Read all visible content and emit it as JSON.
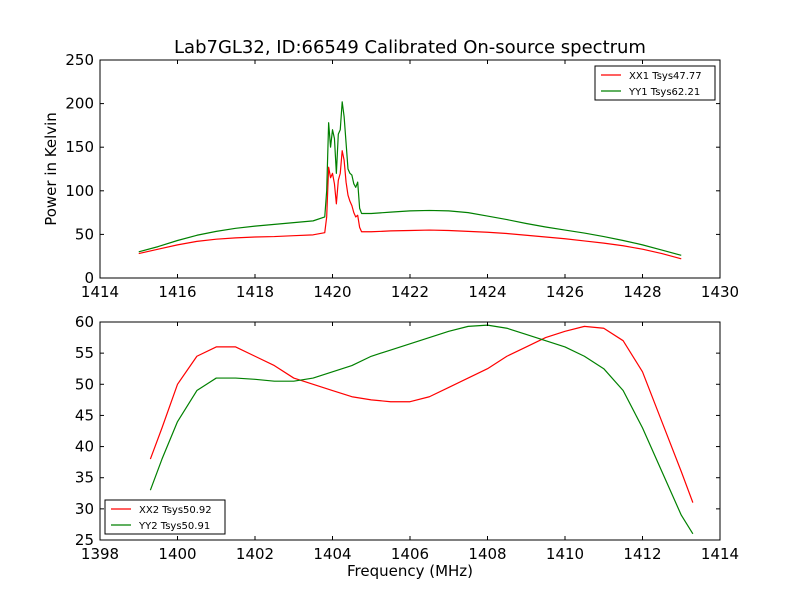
{
  "figure": {
    "title": "Lab7GL32, ID:66549 Calibrated On-source spectrum",
    "background": "#ffffff"
  },
  "chart_data": [
    {
      "type": "line",
      "title": "Lab7GL32, ID:66549 Calibrated On-source spectrum",
      "xlabel": "",
      "ylabel": "Power in Kelvin",
      "xlim": [
        1414,
        1430
      ],
      "ylim": [
        0,
        250
      ],
      "xticks": [
        1414,
        1416,
        1418,
        1420,
        1422,
        1424,
        1426,
        1428,
        1430
      ],
      "yticks": [
        0,
        50,
        100,
        150,
        200,
        250
      ],
      "grid": false,
      "legend": "top-right",
      "series": [
        {
          "name": "XX1 Tsys47.77",
          "color": "#ff0000",
          "points": [
            [
              1415.0,
              28
            ],
            [
              1415.5,
              33
            ],
            [
              1416.0,
              38
            ],
            [
              1416.5,
              42
            ],
            [
              1417.0,
              44.5
            ],
            [
              1417.5,
              46
            ],
            [
              1418.0,
              47
            ],
            [
              1418.5,
              47.5
            ],
            [
              1419.0,
              48.5
            ],
            [
              1419.5,
              49.5
            ],
            [
              1419.8,
              52
            ],
            [
              1419.85,
              70
            ],
            [
              1419.9,
              127
            ],
            [
              1419.95,
              115
            ],
            [
              1420.0,
              120
            ],
            [
              1420.05,
              108
            ],
            [
              1420.1,
              85
            ],
            [
              1420.15,
              112
            ],
            [
              1420.2,
              120
            ],
            [
              1420.25,
              146
            ],
            [
              1420.3,
              135
            ],
            [
              1420.35,
              110
            ],
            [
              1420.4,
              95
            ],
            [
              1420.45,
              88
            ],
            [
              1420.5,
              83
            ],
            [
              1420.55,
              75
            ],
            [
              1420.6,
              70
            ],
            [
              1420.65,
              72
            ],
            [
              1420.7,
              58
            ],
            [
              1420.75,
              53
            ],
            [
              1421.0,
              53
            ],
            [
              1421.5,
              54
            ],
            [
              1422.0,
              54.5
            ],
            [
              1422.5,
              55
            ],
            [
              1423.0,
              54.5
            ],
            [
              1423.5,
              53.5
            ],
            [
              1424.0,
              52.5
            ],
            [
              1424.5,
              51
            ],
            [
              1425.0,
              49
            ],
            [
              1425.5,
              47
            ],
            [
              1426.0,
              45
            ],
            [
              1426.5,
              42.5
            ],
            [
              1427.0,
              40
            ],
            [
              1427.5,
              37
            ],
            [
              1428.0,
              33
            ],
            [
              1428.5,
              28
            ],
            [
              1429.0,
              22
            ]
          ]
        },
        {
          "name": "YY1 Tsys62.21",
          "color": "#008000",
          "points": [
            [
              1415.0,
              30
            ],
            [
              1415.5,
              36
            ],
            [
              1416.0,
              43
            ],
            [
              1416.5,
              49
            ],
            [
              1417.0,
              53.5
            ],
            [
              1417.5,
              57
            ],
            [
              1418.0,
              59.5
            ],
            [
              1418.5,
              61.5
            ],
            [
              1419.0,
              63.5
            ],
            [
              1419.5,
              65.5
            ],
            [
              1419.8,
              70
            ],
            [
              1419.85,
              100
            ],
            [
              1419.9,
              178
            ],
            [
              1419.95,
              150
            ],
            [
              1420.0,
              170
            ],
            [
              1420.05,
              160
            ],
            [
              1420.1,
              120
            ],
            [
              1420.15,
              165
            ],
            [
              1420.2,
              170
            ],
            [
              1420.25,
              202
            ],
            [
              1420.3,
              185
            ],
            [
              1420.35,
              155
            ],
            [
              1420.4,
              125
            ],
            [
              1420.45,
              120
            ],
            [
              1420.5,
              118
            ],
            [
              1420.55,
              108
            ],
            [
              1420.6,
              104
            ],
            [
              1420.65,
              110
            ],
            [
              1420.7,
              80
            ],
            [
              1420.75,
              74
            ],
            [
              1421.0,
              74
            ],
            [
              1421.5,
              75.5
            ],
            [
              1422.0,
              77
            ],
            [
              1422.5,
              77.5
            ],
            [
              1423.0,
              77
            ],
            [
              1423.5,
              75
            ],
            [
              1424.0,
              71
            ],
            [
              1424.5,
              67
            ],
            [
              1425.0,
              62.5
            ],
            [
              1425.5,
              58.5
            ],
            [
              1426.0,
              55
            ],
            [
              1426.5,
              51.5
            ],
            [
              1427.0,
              47.5
            ],
            [
              1427.5,
              43
            ],
            [
              1428.0,
              38
            ],
            [
              1428.5,
              32
            ],
            [
              1429.0,
              26
            ]
          ]
        }
      ]
    },
    {
      "type": "line",
      "title": "",
      "xlabel": "Frequency (MHz)",
      "ylabel": "",
      "xlim": [
        1398,
        1414
      ],
      "ylim": [
        25,
        60
      ],
      "xticks": [
        1398,
        1400,
        1402,
        1404,
        1406,
        1408,
        1410,
        1412,
        1414
      ],
      "yticks": [
        25,
        30,
        35,
        40,
        45,
        50,
        55,
        60
      ],
      "grid": false,
      "legend": "bottom-left",
      "series": [
        {
          "name": "XX2 Tsys50.92",
          "color": "#ff0000",
          "points": [
            [
              1399.3,
              38
            ],
            [
              1399.6,
              43
            ],
            [
              1400.0,
              50
            ],
            [
              1400.5,
              54.5
            ],
            [
              1401.0,
              56
            ],
            [
              1401.5,
              56
            ],
            [
              1402.0,
              54.5
            ],
            [
              1402.5,
              53
            ],
            [
              1403.0,
              51
            ],
            [
              1403.5,
              50
            ],
            [
              1404.0,
              49
            ],
            [
              1404.5,
              48
            ],
            [
              1405.0,
              47.5
            ],
            [
              1405.5,
              47.2
            ],
            [
              1406.0,
              47.2
            ],
            [
              1406.5,
              48
            ],
            [
              1407.0,
              49.5
            ],
            [
              1407.5,
              51
            ],
            [
              1408.0,
              52.5
            ],
            [
              1408.5,
              54.5
            ],
            [
              1409.0,
              56
            ],
            [
              1409.5,
              57.5
            ],
            [
              1410.0,
              58.5
            ],
            [
              1410.5,
              59.3
            ],
            [
              1411.0,
              59
            ],
            [
              1411.5,
              57
            ],
            [
              1412.0,
              52
            ],
            [
              1412.5,
              44
            ],
            [
              1413.0,
              36
            ],
            [
              1413.3,
              31
            ]
          ]
        },
        {
          "name": "YY2 Tsys50.91",
          "color": "#008000",
          "points": [
            [
              1399.3,
              33
            ],
            [
              1399.6,
              38
            ],
            [
              1400.0,
              44
            ],
            [
              1400.5,
              49
            ],
            [
              1401.0,
              51
            ],
            [
              1401.5,
              51
            ],
            [
              1402.0,
              50.8
            ],
            [
              1402.5,
              50.5
            ],
            [
              1403.0,
              50.5
            ],
            [
              1403.5,
              51
            ],
            [
              1404.0,
              52
            ],
            [
              1404.5,
              53
            ],
            [
              1405.0,
              54.5
            ],
            [
              1405.5,
              55.5
            ],
            [
              1406.0,
              56.5
            ],
            [
              1406.5,
              57.5
            ],
            [
              1407.0,
              58.5
            ],
            [
              1407.5,
              59.3
            ],
            [
              1408.0,
              59.5
            ],
            [
              1408.5,
              59
            ],
            [
              1409.0,
              58
            ],
            [
              1409.5,
              57
            ],
            [
              1410.0,
              56
            ],
            [
              1410.5,
              54.5
            ],
            [
              1411.0,
              52.5
            ],
            [
              1411.5,
              49
            ],
            [
              1412.0,
              43
            ],
            [
              1412.5,
              36
            ],
            [
              1413.0,
              29
            ],
            [
              1413.3,
              26
            ]
          ]
        }
      ]
    }
  ]
}
